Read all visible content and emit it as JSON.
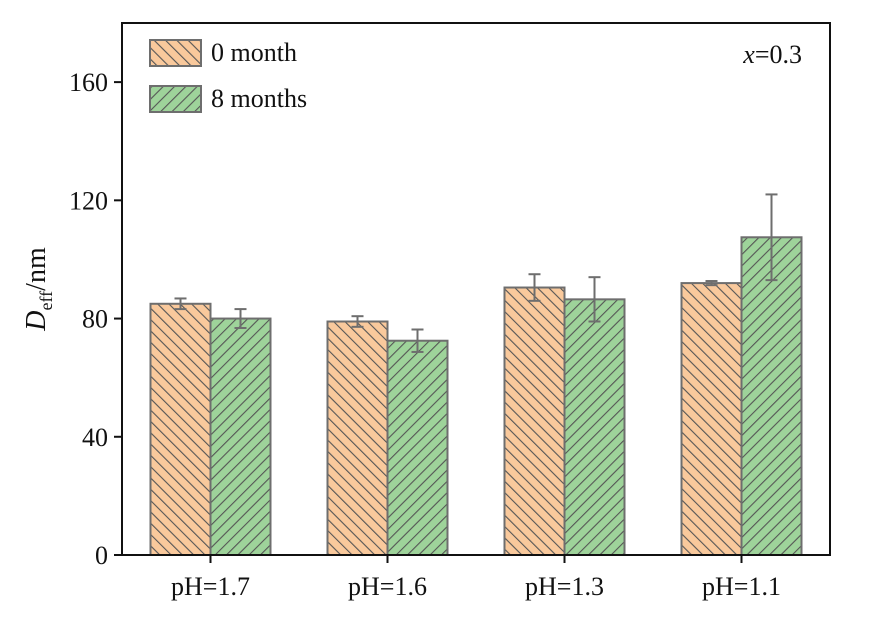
{
  "chart_data": {
    "type": "bar",
    "categories": [
      "pH=1.7",
      "pH=1.6",
      "pH=1.3",
      "pH=1.1"
    ],
    "series": [
      {
        "name": "0 month",
        "values": [
          85,
          79,
          90.5,
          92
        ],
        "errors": [
          1.8,
          1.8,
          4.5,
          0.7
        ],
        "color": "#f9c99c",
        "hatch_color": "#555555"
      },
      {
        "name": "8 months",
        "values": [
          80,
          72.5,
          86.5,
          107.5
        ],
        "errors": [
          3.2,
          3.8,
          7.5,
          14.5
        ],
        "color": "#9ed39a",
        "hatch_color": "#555555"
      }
    ],
    "ylabel": {
      "main": "D",
      "sub": "eff",
      "unit": "/nm"
    },
    "ylim": [
      0,
      180
    ],
    "yticks": [
      "0",
      "40",
      "80",
      "120",
      "160"
    ],
    "annotation": {
      "var": "x",
      "rest": "=0.3"
    },
    "legend_position": "top-left",
    "grid": false
  }
}
